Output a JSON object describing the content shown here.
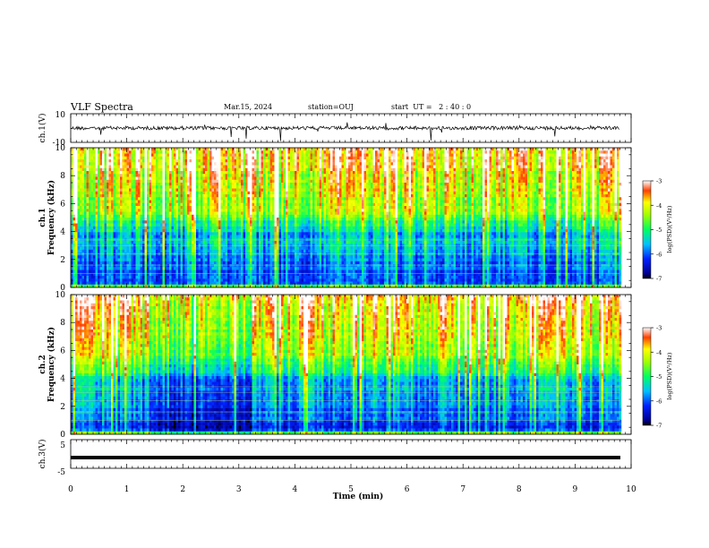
{
  "header": {
    "title": "VLF Spectra",
    "date": "Mar.15, 2024",
    "station": "station=OUJ",
    "start": "start  UT =   2 : 40 : 0"
  },
  "chart_data": [
    {
      "type": "line",
      "panel": "ch1-waveform",
      "ylabel": "ch.1(V)",
      "ylim": [
        -10,
        10
      ],
      "yticklabels": [
        "10",
        "-10"
      ],
      "xlim": [
        0,
        10
      ],
      "description_values": {
        "baseline": 0,
        "noise_amplitude": 1.5
      }
    },
    {
      "type": "heatmap",
      "panel": "ch1-spectrogram",
      "ylabel": "ch.1\nFrequency (kHz)",
      "ylabel_line1": "ch.1",
      "ylabel_line2": "Frequency (kHz)",
      "ylim": [
        0,
        10
      ],
      "yticks": [
        "0",
        "2",
        "4",
        "6",
        "8",
        "10"
      ],
      "xlim": [
        0,
        9.8
      ],
      "colorbar": {
        "label": "log(PSD)(V²/Hz)",
        "min": -7,
        "max": -3,
        "ticks": [
          "-3",
          "-4",
          "-5",
          "-6",
          "-7"
        ]
      }
    },
    {
      "type": "heatmap",
      "panel": "ch2-spectrogram",
      "ylabel_line1": "ch.2",
      "ylabel_line2": "Frequency (kHz)",
      "ylim": [
        0,
        10
      ],
      "yticks": [
        "0",
        "2",
        "4",
        "6",
        "8",
        "10"
      ],
      "xlim": [
        0,
        9.8
      ],
      "colorbar": {
        "label": "log(PSD)(V²/Hz)",
        "min": -7,
        "max": -3,
        "ticks": [
          "-3",
          "-4",
          "-5",
          "-6",
          "-7"
        ]
      }
    },
    {
      "type": "line",
      "panel": "ch3-waveform",
      "ylabel": "ch.3(V)",
      "ylim": [
        -5,
        5
      ],
      "yticklabels": [
        "5",
        "-5"
      ],
      "xlim": [
        0,
        10
      ],
      "description_values": {
        "constant_level": -1
      }
    }
  ],
  "xaxis": {
    "label": "Time (min)",
    "ticks": [
      "0",
      "1",
      "2",
      "3",
      "4",
      "5",
      "6",
      "7",
      "8",
      "9",
      "10"
    ]
  }
}
